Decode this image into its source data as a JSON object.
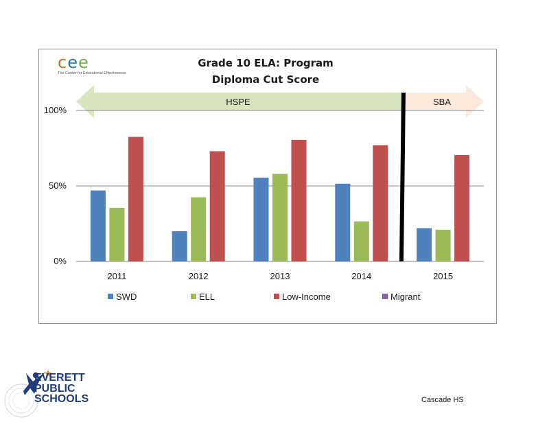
{
  "logo": {
    "cee_letters": [
      "c",
      "e",
      "e"
    ],
    "cee_letter_colors": [
      "#c8702a",
      "#2e75b6",
      "#70ad47"
    ],
    "cee_subtitle": "The Center for Educational Effectiveness"
  },
  "bands": {
    "hspe_label": "HSPE",
    "sba_label": "SBA",
    "hspe_color": "#d7e4bd",
    "sba_color": "#fde9d9"
  },
  "chart_data": {
    "type": "bar",
    "title": [
      "Grade 10 ELA: Program",
      "Diploma Cut Score"
    ],
    "categories": [
      "2011",
      "2012",
      "2013",
      "2014",
      "2015"
    ],
    "series": [
      {
        "name": "SWD",
        "color": "#4f81bd",
        "values": [
          47,
          20,
          55.5,
          51.5,
          22
        ]
      },
      {
        "name": "ELL",
        "color": "#9bbb59",
        "values": [
          35.5,
          42.5,
          58,
          26.5,
          21
        ]
      },
      {
        "name": "Low-Income",
        "color": "#c0504d",
        "values": [
          82.5,
          73,
          80.5,
          77,
          70.5
        ]
      },
      {
        "name": "Migrant",
        "color": "#8064a2",
        "values": [
          null,
          null,
          null,
          null,
          null
        ]
      }
    ],
    "ylim": [
      0,
      100
    ],
    "yticks": [
      0,
      50,
      100
    ],
    "ytick_labels": [
      "0%",
      "50%",
      "100%"
    ],
    "grid": true,
    "legend": "bottom",
    "divider_after_category": "2014"
  },
  "footer": {
    "district_name_lines": [
      "EVERETT",
      "PUBLIC",
      "SCHOOLS"
    ],
    "school": "Cascade HS"
  }
}
